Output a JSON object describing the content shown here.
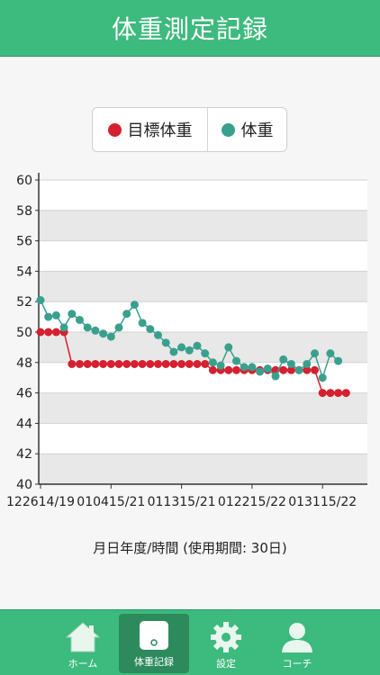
{
  "header": {
    "title": "体重測定記録"
  },
  "legend": [
    {
      "label": "目標体重",
      "color": "#d42030"
    },
    {
      "label": "体重",
      "color": "#3aa08e"
    }
  ],
  "chart_data": {
    "type": "line",
    "xlabel": "月日年度/時間 (使用期間: 30日)",
    "ylim": [
      40,
      60
    ],
    "yticks": [
      40,
      42,
      44,
      46,
      48,
      50,
      52,
      54,
      56,
      58,
      60
    ],
    "tick_labels": [
      "122614/19",
      "010415/21",
      "011315/21",
      "012215/22",
      "013115/22"
    ],
    "series": [
      {
        "name": "目標体重",
        "color": "#d42030",
        "values": [
          50,
          50,
          50,
          50,
          47.9,
          47.9,
          47.9,
          47.9,
          47.9,
          47.9,
          47.9,
          47.9,
          47.9,
          47.9,
          47.9,
          47.9,
          47.9,
          47.9,
          47.9,
          47.9,
          47.9,
          47.9,
          47.5,
          47.5,
          47.5,
          47.5,
          47.5,
          47.5,
          47.5,
          47.5,
          47.5,
          47.5,
          47.5,
          47.5,
          47.5,
          47.5,
          46,
          46,
          46,
          46
        ]
      },
      {
        "name": "体重",
        "color": "#3aa08e",
        "values": [
          52.1,
          51,
          51.1,
          50.3,
          51.2,
          50.8,
          50.3,
          50.1,
          49.9,
          49.7,
          50.3,
          51.2,
          51.8,
          50.6,
          50.2,
          49.8,
          49.3,
          48.7,
          49,
          48.8,
          49.1,
          48.6,
          48,
          47.8,
          49,
          48.1,
          47.7,
          47.7,
          47.4,
          47.6,
          47.1,
          48.2,
          47.9,
          47.5,
          47.9,
          48.6,
          47,
          48.6,
          48.1
        ]
      }
    ]
  },
  "tabs": [
    {
      "label": "ホーム",
      "icon": "home-icon"
    },
    {
      "label": "体重記録",
      "icon": "scale-icon"
    },
    {
      "label": "設定",
      "icon": "gear-icon"
    },
    {
      "label": "コーチ",
      "icon": "person-icon"
    }
  ],
  "colors": {
    "accent": "#3dba7e",
    "accent_dark": "#2c8a5d"
  }
}
